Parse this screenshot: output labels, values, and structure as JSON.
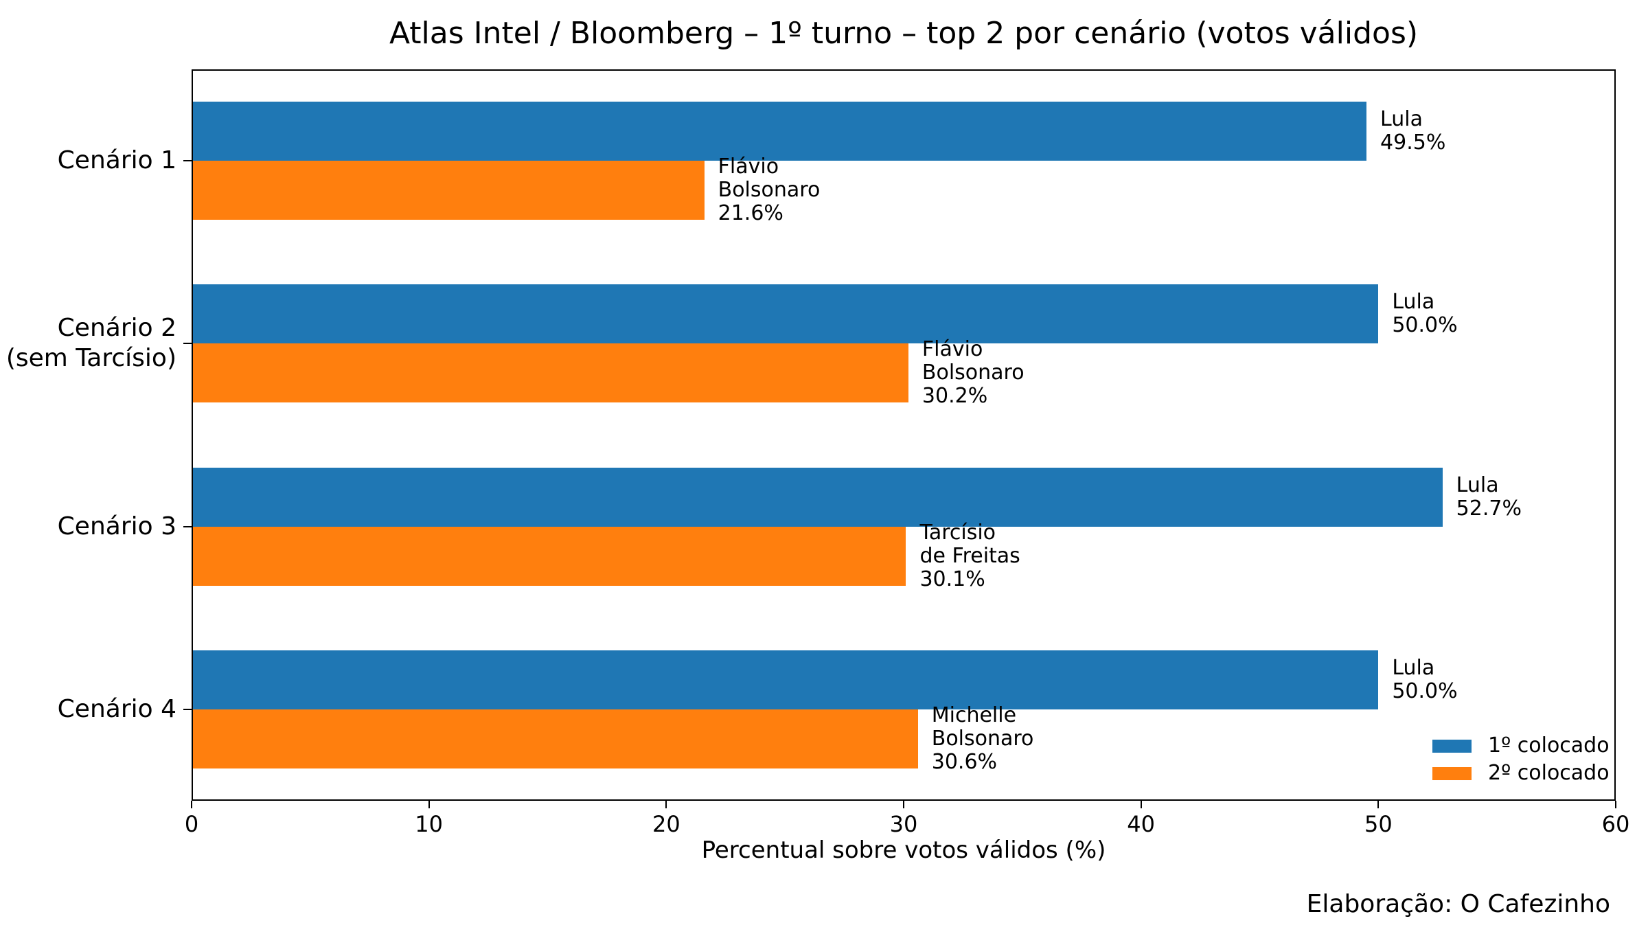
{
  "figure": {
    "footer": "Elaboração: O Cafezinho"
  },
  "chart_data": {
    "type": "bar",
    "orientation": "horizontal",
    "title": "Atlas Intel / Bloomberg – 1º turno – top 2 por cenário (votos válidos)",
    "xlabel": "Percentual sobre votos válidos (%)",
    "ylabel": "",
    "xlim": [
      0,
      60
    ],
    "xticks": [
      0,
      10,
      20,
      30,
      40,
      50,
      60
    ],
    "grid": false,
    "legend_position": "lower right",
    "categories": [
      {
        "id": "cenario-1",
        "lines": [
          "Cenário 1"
        ]
      },
      {
        "id": "cenario-2",
        "lines": [
          "Cenário 2",
          "(sem Tarcísio)"
        ]
      },
      {
        "id": "cenario-3",
        "lines": [
          "Cenário 3"
        ]
      },
      {
        "id": "cenario-4",
        "lines": [
          "Cenário 4"
        ]
      }
    ],
    "series": [
      {
        "name": "1º colocado",
        "color": "#1f77b4",
        "values": [
          49.5,
          50.0,
          52.7,
          50.0
        ],
        "bar_labels": [
          [
            "Lula",
            "49.5%"
          ],
          [
            "Lula",
            "50.0%"
          ],
          [
            "Lula",
            "52.7%"
          ],
          [
            "Lula",
            "50.0%"
          ]
        ]
      },
      {
        "name": "2º colocado",
        "color": "#ff7f0e",
        "values": [
          21.6,
          30.2,
          30.1,
          30.6
        ],
        "bar_labels": [
          [
            "Flávio",
            "Bolsonaro",
            "21.6%"
          ],
          [
            "Flávio",
            "Bolsonaro",
            "30.2%"
          ],
          [
            "Tarcísio",
            "de Freitas",
            "30.1%"
          ],
          [
            "Michelle",
            "Bolsonaro",
            "30.6%"
          ]
        ]
      }
    ],
    "legend": [
      {
        "label": "1º colocado",
        "color": "#1f77b4"
      },
      {
        "label": "2º colocado",
        "color": "#ff7f0e"
      }
    ]
  }
}
